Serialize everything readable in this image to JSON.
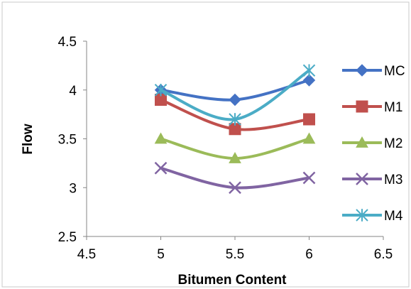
{
  "chart_data": {
    "type": "line",
    "title": "",
    "xlabel": "Bitumen Content",
    "ylabel": "Flow",
    "xlim": [
      4.5,
      6.5
    ],
    "ylim": [
      2.5,
      4.5
    ],
    "x_ticks": [
      "4.5",
      "5",
      "5.5",
      "6",
      "6.5"
    ],
    "y_ticks": [
      "2.5",
      "3",
      "3.5",
      "4",
      "4.5"
    ],
    "grid": false,
    "smooth": true,
    "legend_position": "right",
    "series": [
      {
        "name": "MC",
        "color": "#4472C4",
        "marker": "diamond",
        "x": [
          5,
          5.5,
          6
        ],
        "y": [
          4.0,
          3.9,
          4.1
        ]
      },
      {
        "name": "M1",
        "color": "#C0504D",
        "marker": "square",
        "x": [
          5,
          5.5,
          6
        ],
        "y": [
          3.9,
          3.6,
          3.7
        ]
      },
      {
        "name": "M2",
        "color": "#9BBB59",
        "marker": "triangle",
        "x": [
          5,
          5.5,
          6
        ],
        "y": [
          3.5,
          3.3,
          3.5
        ]
      },
      {
        "name": "M3",
        "color": "#8064A2",
        "marker": "x",
        "x": [
          5,
          5.5,
          6
        ],
        "y": [
          3.2,
          3.0,
          3.1
        ]
      },
      {
        "name": "M4",
        "color": "#4BACC6",
        "marker": "star",
        "x": [
          5,
          5.5,
          6
        ],
        "y": [
          4.0,
          3.7,
          4.2
        ]
      }
    ]
  }
}
